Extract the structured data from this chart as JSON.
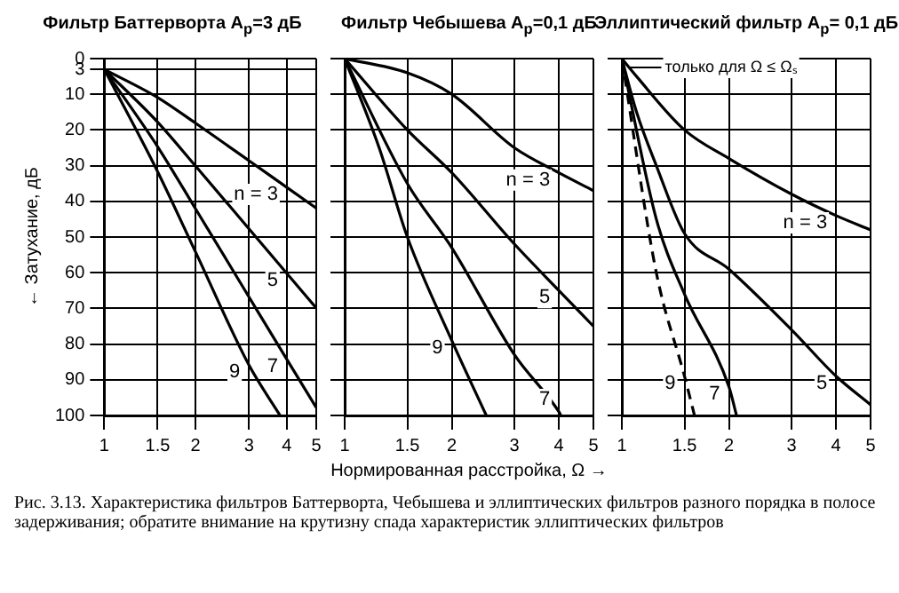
{
  "chart_data": [
    {
      "type": "line",
      "title": "Фильтр Баттерворта A$_{p}$=3 дБ",
      "ylabel": "← Затухание, дБ",
      "log": "x",
      "xlim": [
        1,
        5
      ],
      "xticks": [
        1,
        1.5,
        2,
        3,
        4,
        5
      ],
      "ylim": [
        100,
        0
      ],
      "yticks": [
        0,
        3,
        10,
        20,
        30,
        40,
        50,
        60,
        70,
        80,
        90,
        100
      ],
      "grid": true,
      "legend": false,
      "series": [
        {
          "name": "n = 3",
          "color": "#000000",
          "x": [
            1,
            1.5,
            2,
            3,
            4,
            5
          ],
          "values": [
            3,
            10.9,
            18.1,
            28.6,
            36.1,
            41.9
          ]
        },
        {
          "name": "5",
          "color": "#000000",
          "x": [
            1,
            1.5,
            2,
            3,
            4,
            5
          ],
          "values": [
            3,
            17.8,
            30.1,
            47.7,
            60.2,
            69.9
          ]
        },
        {
          "name": "7",
          "color": "#000000",
          "x": [
            1,
            1.5,
            2,
            3,
            4,
            5
          ],
          "values": [
            3,
            24.7,
            42.1,
            66.8,
            84.3,
            97.8
          ]
        },
        {
          "name": "9",
          "color": "#000000",
          "x": [
            1,
            1.5,
            2,
            3,
            3.8
          ],
          "values": [
            3,
            31.7,
            54.2,
            85.9,
            100
          ]
        }
      ]
    },
    {
      "type": "line",
      "title": "Фильтр Чебышева A$_{p}$=0,1 дБ",
      "xlabel": "Нормированная расстройка, Ω →",
      "log": "x",
      "xlim": [
        1,
        5
      ],
      "xticks": [
        1,
        1.5,
        2,
        3,
        4,
        5
      ],
      "ylim": [
        100,
        0
      ],
      "yticks": [
        0,
        10,
        20,
        30,
        40,
        50,
        60,
        70,
        80,
        90,
        100
      ],
      "grid": true,
      "legend": false,
      "tick_labels": "x",
      "annotations": [
        "Рис. 3.13. Характеристика фильтров Баттерворта, Чебышева и эллиптических фильтров разного порядка в полосе задерживания; обратите внимание на крутизну спада характеристик эллиптических фильтров"
      ],
      "series": [
        {
          "name": "n = 3",
          "color": "#000000",
          "x": [
            1,
            1.5,
            2,
            3,
            4,
            5
          ],
          "values": [
            0,
            4,
            10,
            25,
            32,
            37
          ]
        },
        {
          "name": "5",
          "color": "#000000",
          "x": [
            1,
            1.5,
            2,
            3,
            4,
            5
          ],
          "values": [
            0,
            20,
            32,
            52,
            65,
            75
          ]
        },
        {
          "name": "7",
          "color": "#000000",
          "x": [
            1,
            1.5,
            2,
            3,
            4,
            4.05
          ],
          "values": [
            0,
            35,
            53,
            83,
            99,
            100
          ]
        },
        {
          "name": "9",
          "color": "#000000",
          "x": [
            1,
            1.25,
            1.5,
            2,
            2.5
          ],
          "values": [
            0,
            25,
            50,
            79,
            100
          ]
        }
      ]
    },
    {
      "type": "line",
      "title": "Эллиптический фильтр A$_{p}$= 0,1 дБ",
      "log": "x",
      "xlim": [
        1,
        5
      ],
      "xticks": [
        1,
        1.5,
        2,
        3,
        4,
        5
      ],
      "ylim": [
        100,
        0
      ],
      "yticks": [
        0,
        10,
        20,
        30,
        40,
        50,
        60,
        70,
        80,
        90,
        100
      ],
      "grid": true,
      "legend": false,
      "tick_labels": "x",
      "annotations": [
        {
          "text": "только для Ω ≤ Ωₛ",
          "x": 1.05,
          "y": 2.5
        }
      ],
      "series": [
        {
          "name": "n = 3",
          "color": "#000000",
          "x": [
            1,
            1.1,
            1.5,
            2,
            3,
            4,
            5
          ],
          "values": [
            0,
            5,
            20,
            28,
            38,
            44,
            48
          ]
        },
        {
          "name": "5",
          "color": "#000000",
          "x": [
            1,
            1.1,
            1.25,
            1.5,
            2,
            3,
            4,
            5
          ],
          "values": [
            0,
            15,
            30,
            49,
            59,
            76,
            89,
            97
          ]
        },
        {
          "name": "7",
          "color": "#000000",
          "x": [
            1,
            1.25,
            1.5,
            2,
            2.1
          ],
          "values": [
            0,
            45,
            66,
            92,
            100
          ]
        },
        {
          "name": "9",
          "color": "#000000",
          "line_style": "dashed",
          "x": [
            1,
            1.25,
            1.5,
            1.6
          ],
          "values": [
            0,
            60,
            89,
            100
          ]
        }
      ]
    }
  ]
}
